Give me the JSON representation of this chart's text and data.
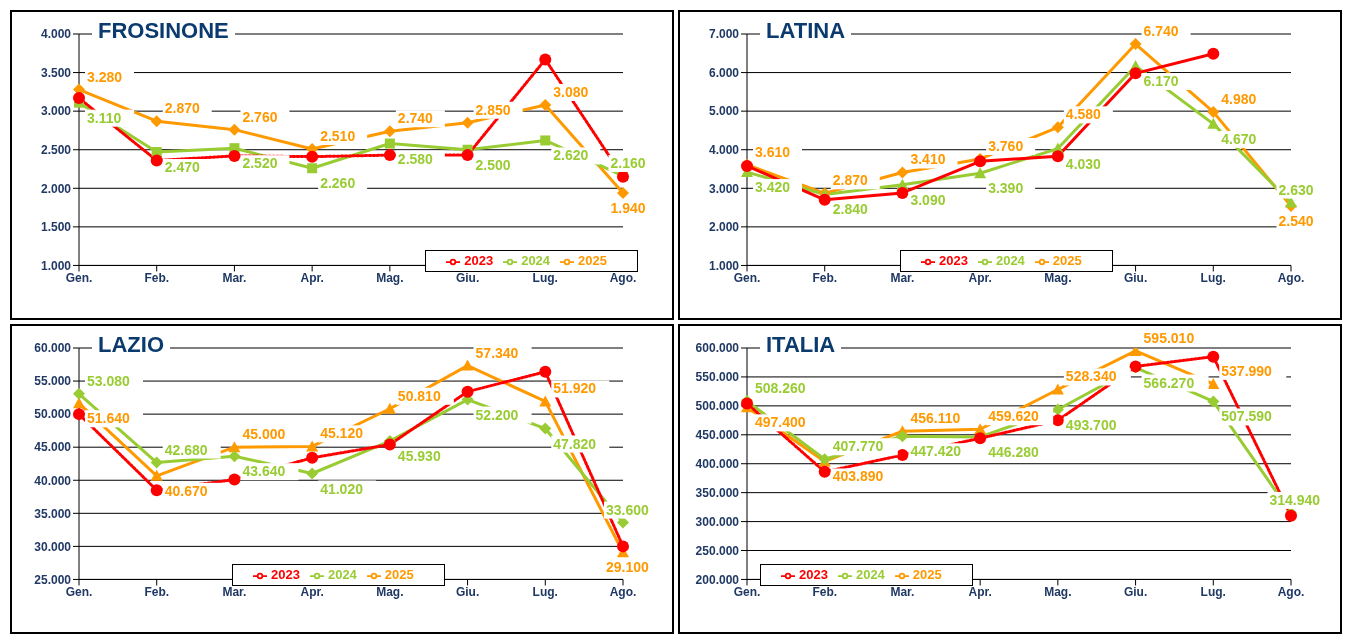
{
  "chart_data": [
    {
      "type": "line",
      "title": "FROSINONE",
      "categories": [
        "Gen.",
        "Feb.",
        "Mar.",
        "Apr.",
        "Mag.",
        "Giu.",
        "Lug.",
        "Ago."
      ],
      "ylim": [
        1000,
        4000
      ],
      "yticks": [
        {
          "value": 1000,
          "label": "1.000"
        },
        {
          "value": 1500,
          "label": "1.500"
        },
        {
          "value": 2000,
          "label": "2.000"
        },
        {
          "value": 2500,
          "label": "2.500"
        },
        {
          "value": 3000,
          "label": "3.000"
        },
        {
          "value": 3500,
          "label": "3.500"
        },
        {
          "value": 4000,
          "label": "4.000"
        }
      ],
      "grid": "y",
      "legend": "bottom right",
      "series": [
        {
          "name": "2025",
          "color": "#ff9900",
          "marker": "diamond",
          "line_style": "solid",
          "values": [
            3280,
            2870,
            2760,
            2510,
            2740,
            2850,
            3080,
            1940
          ],
          "value_labels": [
            "3.280",
            "2.870",
            "2.760",
            "2.510",
            "2.740",
            "2.850",
            "3.080",
            "1.940"
          ]
        },
        {
          "name": "2024",
          "color": "#99cc33",
          "marker": "square",
          "line_style": "solid",
          "values": [
            3110,
            2470,
            2520,
            2260,
            2580,
            2500,
            2620,
            2160
          ],
          "value_labels": [
            "3.110",
            "2.470",
            "2.520",
            "2.260",
            "2.580",
            "2.500",
            "2.620",
            "2.160"
          ]
        },
        {
          "name": "2023",
          "color": "#ff0000",
          "marker": "circle",
          "line_style": "dotted",
          "values": [
            3170,
            2360,
            2420,
            2410,
            2430,
            2430,
            3670,
            2150
          ]
        }
      ]
    },
    {
      "type": "line",
      "title": "LATINA",
      "categories": [
        "Gen.",
        "Feb.",
        "Mar.",
        "Apr.",
        "Mag.",
        "Giu.",
        "Lug.",
        "Ago."
      ],
      "ylim": [
        1000,
        7000
      ],
      "yticks": [
        {
          "value": 1000,
          "label": "1.000"
        },
        {
          "value": 2000,
          "label": "2.000"
        },
        {
          "value": 3000,
          "label": "3.000"
        },
        {
          "value": 4000,
          "label": "4.000"
        },
        {
          "value": 5000,
          "label": "5.000"
        },
        {
          "value": 6000,
          "label": "6.000"
        },
        {
          "value": 7000,
          "label": "7.000"
        }
      ],
      "grid": "y",
      "legend": "bottom",
      "series": [
        {
          "name": "2025",
          "color": "#ff9900",
          "marker": "diamond",
          "line_style": "solid",
          "values": [
            3610,
            2870,
            3410,
            3760,
            4580,
            6740,
            4980,
            2540
          ],
          "value_labels": [
            "3.610",
            "2.870",
            "3.410",
            "3.760",
            "4.580",
            "6.740",
            "4.980",
            "2.540"
          ]
        },
        {
          "name": "2024",
          "color": "#99cc33",
          "marker": "triangle",
          "line_style": "solid",
          "values": [
            3420,
            2840,
            3090,
            3390,
            4030,
            6170,
            4670,
            2630
          ],
          "value_labels": [
            "3.420",
            "2.840",
            "3.090",
            "3.390",
            "4.030",
            "6.170",
            "4.670",
            "2.630"
          ]
        },
        {
          "name": "2023",
          "color": "#ff0000",
          "marker": "circle",
          "line_style": "solid",
          "values": [
            3580,
            2700,
            2880,
            3700,
            3830,
            5980,
            6490,
            null
          ]
        }
      ]
    },
    {
      "type": "line",
      "title": "LAZIO",
      "categories": [
        "Gen.",
        "Feb.",
        "Mar.",
        "Apr.",
        "Mag.",
        "Giu.",
        "Lug.",
        "Ago."
      ],
      "ylim": [
        25000,
        60000
      ],
      "yticks": [
        {
          "value": 25000,
          "label": "25.000"
        },
        {
          "value": 30000,
          "label": "30.000"
        },
        {
          "value": 35000,
          "label": "35.000"
        },
        {
          "value": 40000,
          "label": "40.000"
        },
        {
          "value": 45000,
          "label": "45.000"
        },
        {
          "value": 50000,
          "label": "50.000"
        },
        {
          "value": 55000,
          "label": "55.000"
        },
        {
          "value": 60000,
          "label": "60.000"
        }
      ],
      "grid": "y",
      "legend": "bottom",
      "series": [
        {
          "name": "2025",
          "color": "#ff9900",
          "marker": "triangle",
          "line_style": "solid",
          "values": [
            51640,
            40670,
            45000,
            45120,
            50810,
            57340,
            51920,
            29100
          ],
          "value_labels": [
            "51.640",
            "40.670",
            "45.000",
            "45.120",
            "50.810",
            "57.340",
            "51.920",
            "29.100"
          ]
        },
        {
          "name": "2024",
          "color": "#99cc33",
          "marker": "diamond",
          "line_style": "solid",
          "values": [
            53080,
            42680,
            43640,
            41020,
            45930,
            52200,
            47820,
            33600
          ],
          "value_labels": [
            "53.080",
            "42.680",
            "43.640",
            "41.020",
            "45.930",
            "52.200",
            "47.820",
            "33.600"
          ]
        },
        {
          "name": "2023",
          "color": "#ff0000",
          "marker": "circle",
          "line_style": "dotted",
          "values": [
            50000,
            38500,
            40100,
            43400,
            45400,
            53400,
            56400,
            30000
          ]
        }
      ]
    },
    {
      "type": "line",
      "title": "ITALIA",
      "categories": [
        "Gen.",
        "Feb.",
        "Mar.",
        "Apr.",
        "Mag.",
        "Giu.",
        "Lug.",
        "Ago."
      ],
      "ylim": [
        200000,
        600000
      ],
      "yticks": [
        {
          "value": 200000,
          "label": "200.000"
        },
        {
          "value": 250000,
          "label": "250.000"
        },
        {
          "value": 300000,
          "label": "300.000"
        },
        {
          "value": 350000,
          "label": "350.000"
        },
        {
          "value": 400000,
          "label": "400.000"
        },
        {
          "value": 450000,
          "label": "450.000"
        },
        {
          "value": 500000,
          "label": "500.000"
        },
        {
          "value": 550000,
          "label": "550.000"
        },
        {
          "value": 600000,
          "label": "600.000"
        }
      ],
      "grid": "y",
      "legend": "bottom left",
      "series": [
        {
          "name": "2025",
          "color": "#ff9900",
          "marker": "triangle",
          "line_style": "solid",
          "values": [
            497400,
            403890,
            456110,
            459620,
            528340,
            595010,
            537990,
            null
          ],
          "value_labels": [
            "497.400",
            "403.890",
            "456.110",
            "459.620",
            "528.340",
            "595.010",
            "537.990",
            null
          ]
        },
        {
          "name": "2024",
          "color": "#99cc33",
          "marker": "diamond",
          "line_style": "solid",
          "values": [
            508260,
            407770,
            447420,
            446280,
            493700,
            566270,
            507590,
            314940
          ],
          "value_labels": [
            "508.260",
            "407.770",
            "447.420",
            "446.280",
            "493.700",
            "566.270",
            "507.590",
            "314.940"
          ]
        },
        {
          "name": "2023",
          "color": "#ff0000",
          "marker": "circle",
          "line_style": "dotted",
          "values": [
            504000,
            386000,
            415000,
            444000,
            475000,
            568000,
            585000,
            310000
          ]
        }
      ]
    }
  ]
}
